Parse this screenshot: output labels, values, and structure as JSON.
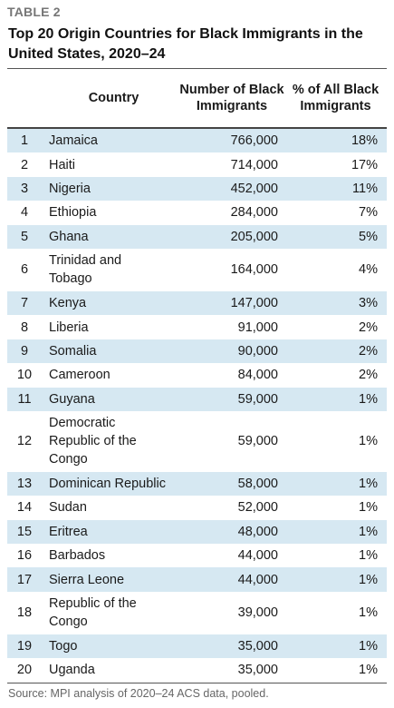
{
  "label": "TABLE 2",
  "title": "Top 20 Origin Countries for Black Immigrants in the United States, 2020–24",
  "headers": {
    "country": "Country",
    "number": "Number of Black Immigrants",
    "pct": "% of All Black Immigrants"
  },
  "rows": [
    {
      "rank": "1",
      "country": "Jamaica",
      "number": "766,000",
      "pct": "18%"
    },
    {
      "rank": "2",
      "country": "Haiti",
      "number": "714,000",
      "pct": "17%"
    },
    {
      "rank": "3",
      "country": "Nigeria",
      "number": "452,000",
      "pct": "11%"
    },
    {
      "rank": "4",
      "country": "Ethiopia",
      "number": "284,000",
      "pct": "7%"
    },
    {
      "rank": "5",
      "country": "Ghana",
      "number": "205,000",
      "pct": "5%"
    },
    {
      "rank": "6",
      "country": "Trinidad and Tobago",
      "number": "164,000",
      "pct": "4%"
    },
    {
      "rank": "7",
      "country": "Kenya",
      "number": "147,000",
      "pct": "3%"
    },
    {
      "rank": "8",
      "country": "Liberia",
      "number": "91,000",
      "pct": "2%"
    },
    {
      "rank": "9",
      "country": "Somalia",
      "number": "90,000",
      "pct": "2%"
    },
    {
      "rank": "10",
      "country": "Cameroon",
      "number": "84,000",
      "pct": "2%"
    },
    {
      "rank": "11",
      "country": "Guyana",
      "number": "59,000",
      "pct": "1%"
    },
    {
      "rank": "12",
      "country": "Democratic Republic of the Congo",
      "number": "59,000",
      "pct": "1%"
    },
    {
      "rank": "13",
      "country": "Dominican Republic",
      "number": "58,000",
      "pct": "1%"
    },
    {
      "rank": "14",
      "country": "Sudan",
      "number": "52,000",
      "pct": "1%"
    },
    {
      "rank": "15",
      "country": "Eritrea",
      "number": "48,000",
      "pct": "1%"
    },
    {
      "rank": "16",
      "country": "Barbados",
      "number": "44,000",
      "pct": "1%"
    },
    {
      "rank": "17",
      "country": "Sierra Leone",
      "number": "44,000",
      "pct": "1%"
    },
    {
      "rank": "18",
      "country": "Republic of the Congo",
      "number": "39,000",
      "pct": "1%"
    },
    {
      "rank": "19",
      "country": "Togo",
      "number": "35,000",
      "pct": "1%"
    },
    {
      "rank": "20",
      "country": "Uganda",
      "number": "35,000",
      "pct": "1%"
    }
  ],
  "source": "Source: MPI analysis of 2020–24 ACS data, pooled.",
  "colors": {
    "row_shade": "#d6e8f2",
    "label_gray": "#767676"
  }
}
